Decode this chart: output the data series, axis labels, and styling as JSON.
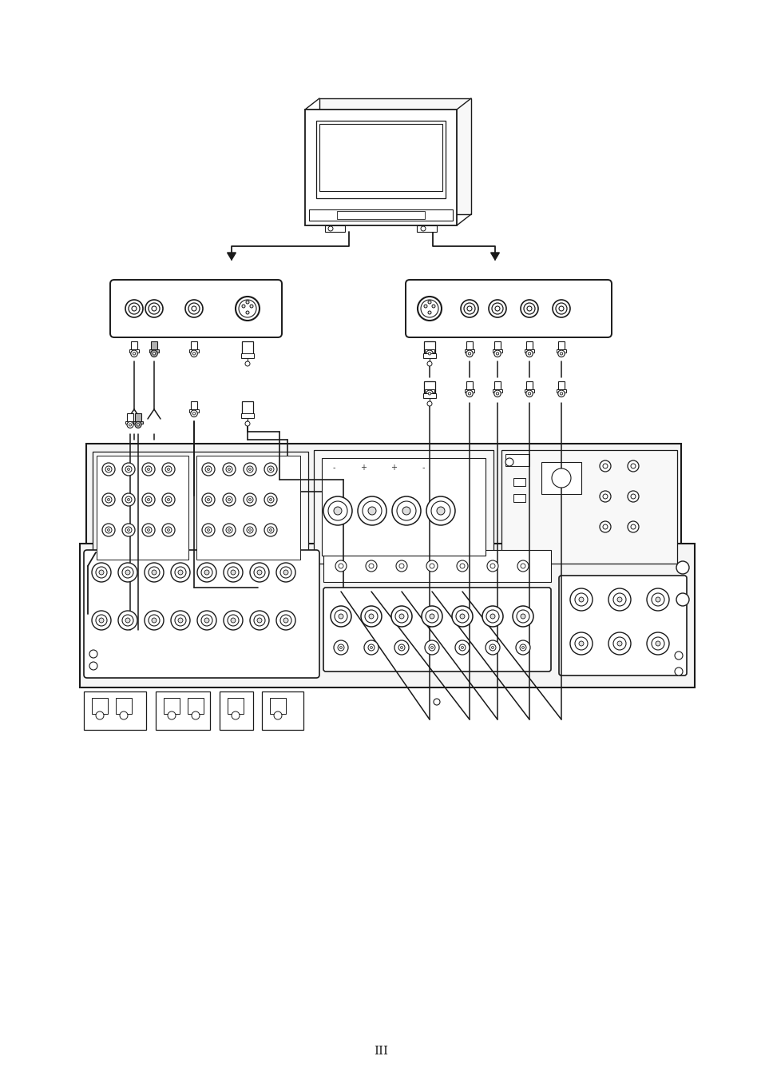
{
  "bg_color": "#ffffff",
  "line_color": "#1a1a1a",
  "page_number": "III",
  "fig_width": 9.54,
  "fig_height": 13.51,
  "dpi": 100
}
